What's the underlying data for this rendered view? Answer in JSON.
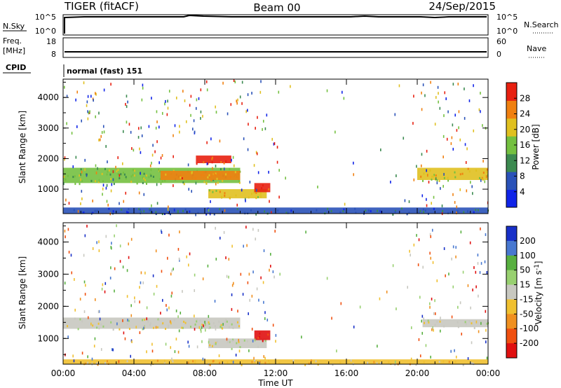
{
  "header": {
    "station": "TIGER (fitACF)",
    "beam": "Beam 00",
    "date": "24/Sep/2015"
  },
  "sky_panel": {
    "label": "N.Sky",
    "right_label": "N.Search",
    "left_ticks": [
      "10^5",
      "10^0"
    ],
    "right_ticks": [
      "10^5",
      "10^0"
    ]
  },
  "freq_panel": {
    "label_line1": "Freq.",
    "label_line2": "[MHz]",
    "right_label": "Nave",
    "left_ticks": [
      "18",
      "8"
    ],
    "right_ticks": [
      "60",
      "0"
    ]
  },
  "cpid": {
    "label": "CPID",
    "value": "normal (fast) 151"
  },
  "chart_data": [
    {
      "type": "heatmap",
      "name": "Power",
      "title": "",
      "xlabel": "",
      "ylabel": "Slant Range [km]",
      "x_tick_labels": [
        "00:00",
        "04:00",
        "08:00",
        "12:00",
        "16:00",
        "20:00",
        "00:00"
      ],
      "y_tick_labels": [
        "1000",
        "2000",
        "3000",
        "4000"
      ],
      "ylim": [
        200,
        4600
      ],
      "colorbar": {
        "label": "Power [dB]",
        "ticks": [
          "4",
          "8",
          "12",
          "16",
          "20",
          "24",
          "28"
        ],
        "range": [
          0,
          32
        ],
        "colors": [
          "#1024e8",
          "#2a52b8",
          "#3c8a50",
          "#74c040",
          "#e0c020",
          "#f08010",
          "#e82010"
        ]
      },
      "regions": [
        {
          "t_start": 0.0,
          "t_end": 10.0,
          "r_min": 1200,
          "r_max": 1700,
          "level": 16,
          "desc": "main band"
        },
        {
          "t_start": 5.5,
          "t_end": 10.0,
          "r_min": 1300,
          "r_max": 1600,
          "level": 24,
          "desc": "strong band"
        },
        {
          "t_start": 7.5,
          "t_end": 9.5,
          "r_min": 1850,
          "r_max": 2100,
          "level": 28,
          "desc": "peak patch"
        },
        {
          "t_start": 8.2,
          "t_end": 11.5,
          "r_min": 700,
          "r_max": 1000,
          "level": 20,
          "desc": "lower band"
        },
        {
          "t_start": 10.8,
          "t_end": 11.7,
          "r_min": 900,
          "r_max": 1200,
          "level": 28,
          "desc": "peak near 11 UT"
        },
        {
          "t_start": 20.0,
          "t_end": 24.0,
          "r_min": 1300,
          "r_max": 1700,
          "level": 20,
          "desc": "evening band"
        },
        {
          "t_start": 0.0,
          "t_end": 24.0,
          "r_min": 200,
          "r_max": 400,
          "level": 8,
          "desc": "near-range clutter"
        }
      ]
    },
    {
      "type": "heatmap",
      "name": "Velocity",
      "title": "",
      "xlabel": "Time UT",
      "ylabel": "Slant Range [km]",
      "x_tick_labels": [
        "00:00",
        "04:00",
        "08:00",
        "12:00",
        "16:00",
        "20:00",
        "00:00"
      ],
      "y_tick_labels": [
        "1000",
        "2000",
        "3000",
        "4000"
      ],
      "ylim": [
        200,
        4600
      ],
      "colorbar": {
        "label": "Velocity [m s^-1]",
        "ticks": [
          "200",
          "100",
          "50",
          "15",
          "-15",
          "-50",
          "-100",
          "-200"
        ],
        "range": [
          -250,
          250
        ],
        "colors": [
          "#1830c8",
          "#4878d0",
          "#58b040",
          "#98d070",
          "#c8c8c0",
          "#f0c030",
          "#f09020",
          "#f05010",
          "#e01010"
        ]
      },
      "regions": [
        {
          "t_start": 0.0,
          "t_end": 10.0,
          "r_min": 1300,
          "r_max": 1650,
          "level": 0,
          "desc": "ground scatter band"
        },
        {
          "t_start": 8.2,
          "t_end": 11.5,
          "r_min": 700,
          "r_max": 1000,
          "level": 0,
          "desc": "lower band"
        },
        {
          "t_start": 10.8,
          "t_end": 11.7,
          "r_min": 950,
          "r_max": 1250,
          "level": -200,
          "desc": "strong negative patch"
        },
        {
          "t_start": 20.3,
          "t_end": 24.0,
          "r_min": 1350,
          "r_max": 1600,
          "level": 0,
          "desc": "evening ground scatter"
        },
        {
          "t_start": 0.0,
          "t_end": 24.0,
          "r_min": 200,
          "r_max": 350,
          "level": -50,
          "desc": "near-range clutter"
        }
      ]
    }
  ]
}
